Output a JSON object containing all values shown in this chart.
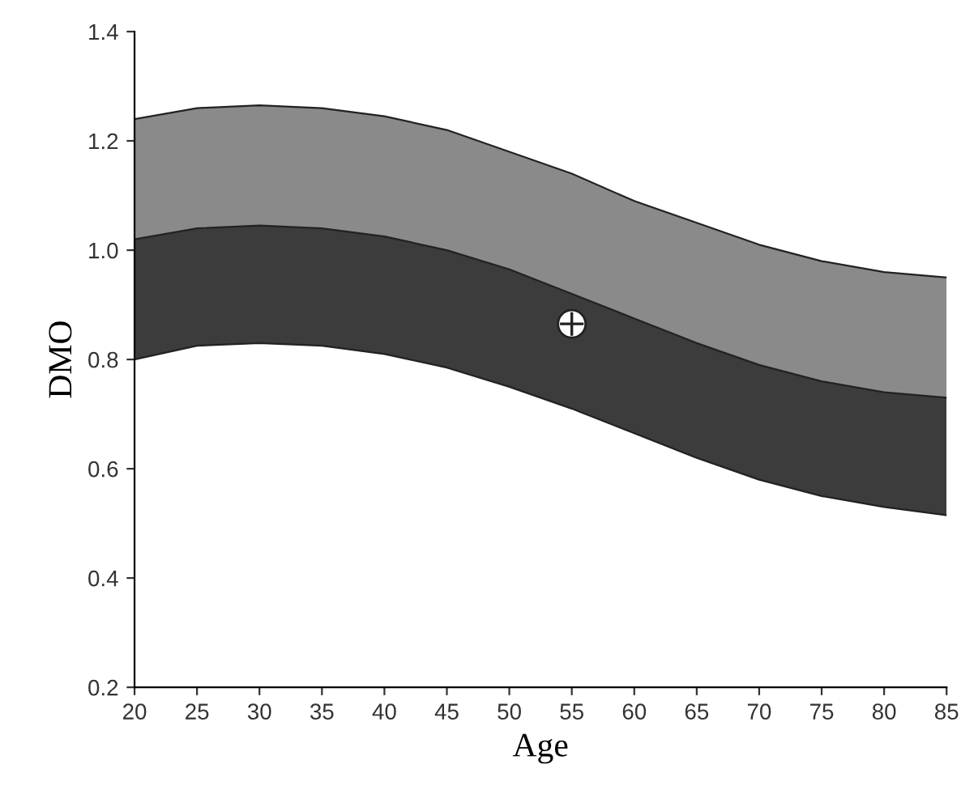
{
  "chart_data": {
    "type": "area",
    "stacked": true,
    "xlabel": "Age",
    "ylabel": "DMO",
    "xlim": [
      20,
      85
    ],
    "xticks": [
      20,
      25,
      30,
      35,
      40,
      45,
      50,
      55,
      60,
      65,
      70,
      75,
      80,
      85
    ],
    "ylim": [
      0.2,
      1.4
    ],
    "yticks": [
      0.2,
      0.4,
      0.6,
      0.8,
      {
        "value": 1,
        "label": "1.0"
      },
      1.2,
      1.4
    ],
    "grid": false,
    "legend": false,
    "series": [
      {
        "color": "#ffffff",
        "x": [
          20,
          25,
          30,
          35,
          40,
          45,
          50,
          55,
          60,
          65,
          70,
          75,
          80,
          85
        ],
        "values": [
          0.8,
          0.825,
          0.83,
          0.825,
          0.81,
          0.785,
          0.75,
          0.71,
          0.665,
          0.62,
          0.58,
          0.55,
          0.53,
          0.515
        ]
      },
      {
        "color": "#3c3c3c",
        "x": [
          20,
          25,
          30,
          35,
          40,
          45,
          50,
          55,
          60,
          65,
          70,
          75,
          80,
          85
        ],
        "values": [
          0.22,
          0.215,
          0.215,
          0.215,
          0.215,
          0.215,
          0.215,
          0.21,
          0.21,
          0.21,
          0.21,
          0.21,
          0.21,
          0.215
        ]
      },
      {
        "color": "#8a8a8a",
        "x": [
          20,
          25,
          30,
          35,
          40,
          45,
          50,
          55,
          60,
          65,
          70,
          75,
          80,
          85
        ],
        "values": [
          0.22,
          0.22,
          0.22,
          0.22,
          0.22,
          0.22,
          0.215,
          0.22,
          0.215,
          0.22,
          0.22,
          0.22,
          0.22,
          0.22
        ]
      },
      {
        "type": "scatter",
        "color": "#ffffff",
        "marker": "circle",
        "x": [
          55
        ],
        "values": [
          0.865
        ]
      }
    ]
  }
}
